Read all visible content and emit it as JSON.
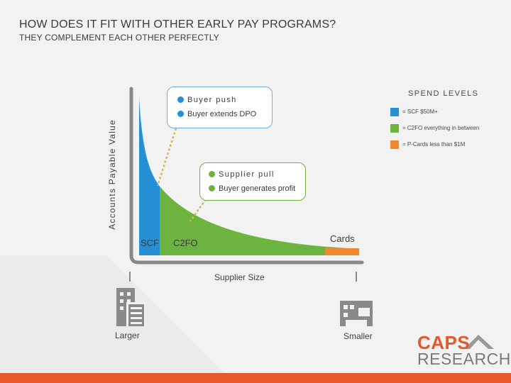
{
  "slide": {
    "title": "HOW DOES IT FIT WITH OTHER EARLY PAY PROGRAMS?",
    "subtitle": "THEY COMPLEMENT EACH OTHER PERFECTLY"
  },
  "axes": {
    "y_label": "Accounts Payable Value",
    "x_label": "Supplier Size",
    "left_end": "Larger",
    "right_end": "Smaller"
  },
  "callouts": {
    "buyer": {
      "line1": "Buyer push",
      "line2": "Buyer extends DPO"
    },
    "supplier": {
      "line1": "Supplier pull",
      "line2": "Buyer generates profit"
    }
  },
  "regions": {
    "scf": "SCF",
    "c2fo": "C2FO",
    "cards": "Cards"
  },
  "legend": {
    "title": "SPEND LEVELS",
    "items": [
      {
        "text": "= SCF $50M+",
        "color": "#2590d6"
      },
      {
        "text": "= C2FO everything in between",
        "color": "#6db33f"
      },
      {
        "text": "= P-Cards less than $1M",
        "color": "#f08a2c"
      }
    ]
  },
  "colors": {
    "scf": "#2590d6",
    "c2fo": "#6db33f",
    "cards": "#f08a2c",
    "accent_bar": "#e8572a",
    "logo_orange": "#e8572a"
  },
  "logo": {
    "line1": "CAPS",
    "line2": "RESEARCH"
  },
  "icons": {
    "left": "office-buildings-icon",
    "right": "small-shop-icon"
  }
}
